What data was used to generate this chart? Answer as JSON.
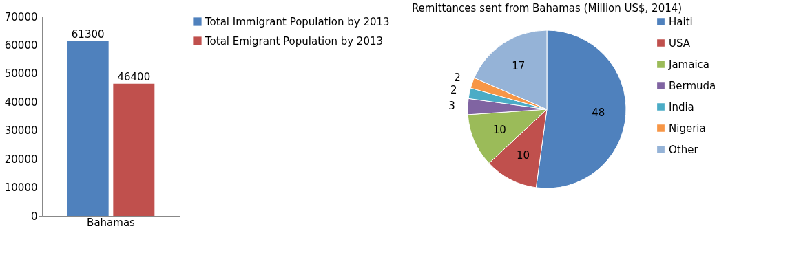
{
  "chart_data": [
    {
      "type": "bar",
      "categories": [
        "Bahamas"
      ],
      "ylim": [
        0,
        70000
      ],
      "yticks": [
        0,
        10000,
        20000,
        30000,
        40000,
        50000,
        60000,
        70000
      ],
      "grid": false,
      "legend": "right",
      "data_labels": true,
      "series": [
        {
          "name": "Total Immigrant Population by 2013",
          "color": "#4f81bd",
          "values": [
            61300
          ]
        },
        {
          "name": "Total Emigrant Population by 2013",
          "color": "#c0504d",
          "values": [
            46400
          ]
        }
      ]
    },
    {
      "type": "pie",
      "title": "Remittances sent from Bahamas (Million US$, 2014)",
      "legend": "right",
      "data_labels": true,
      "categories": [
        "Haiti",
        "USA",
        "Jamaica",
        "Bermuda",
        "India",
        "Nigeria",
        "Other"
      ],
      "values": [
        48,
        10,
        10,
        3,
        2,
        2,
        17
      ],
      "colors": [
        "#4f81bd",
        "#c0504d",
        "#9bbb59",
        "#8064a2",
        "#4bacc6",
        "#f79646",
        "#95b3d7"
      ]
    }
  ]
}
